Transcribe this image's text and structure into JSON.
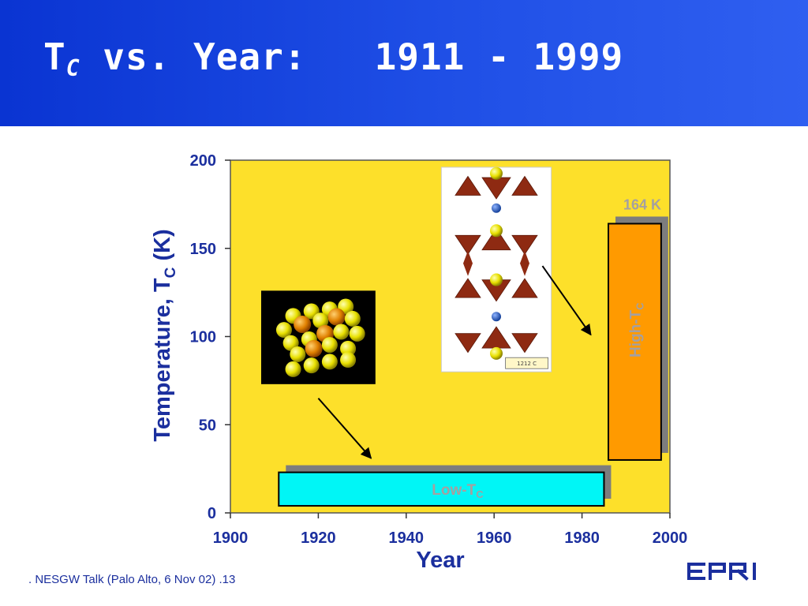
{
  "slide": {
    "title_main": "T",
    "title_sub": "C",
    "title_rest": " vs. Year:   1911 - 1999",
    "footer": ". NESGW Talk (Palo Alto, 6 Nov 02) .13",
    "logo_text": "EPRI"
  },
  "chart_data": {
    "type": "bar",
    "x_axis": {
      "label": "Year",
      "range": [
        1900,
        2000
      ],
      "ticks": [
        1900,
        1920,
        1940,
        1960,
        1980,
        2000
      ]
    },
    "y_axis": {
      "label_main": "Temperature, T",
      "label_sub": "C",
      "label_unit": "(K)",
      "range": [
        0,
        200
      ],
      "ticks": [
        0,
        50,
        100,
        150,
        200
      ]
    },
    "plot_background": "#fde02a",
    "bars": [
      {
        "label_main": "Low-T",
        "label_sub": "C",
        "x_start": 1911,
        "x_end": 1985,
        "y_start": 4,
        "y_end": 23,
        "color": "#00f6f6",
        "orientation": "horizontal"
      },
      {
        "label_main": "High-T",
        "label_sub": "C",
        "x_start": 1986,
        "x_end": 1998,
        "y_start": 30,
        "y_end": 164,
        "color": "#ff9a00",
        "orientation": "vertical"
      }
    ],
    "annotations": [
      {
        "text": "164 K",
        "x": 1993,
        "y": 173
      }
    ],
    "insets": [
      {
        "name": "low-tc-crystal-structure",
        "x_start": 1907,
        "x_end": 1933,
        "y_start": 73,
        "y_end": 126
      },
      {
        "name": "high-tc-crystal-structure",
        "x_start": 1948,
        "x_end": 1973,
        "y_start": 80,
        "y_end": 196,
        "caption": "1212 C"
      }
    ],
    "arrows": [
      {
        "from": [
          1920,
          65
        ],
        "to": [
          1932,
          31
        ]
      },
      {
        "from": [
          1971,
          140
        ],
        "to": [
          1982,
          101
        ]
      }
    ]
  }
}
